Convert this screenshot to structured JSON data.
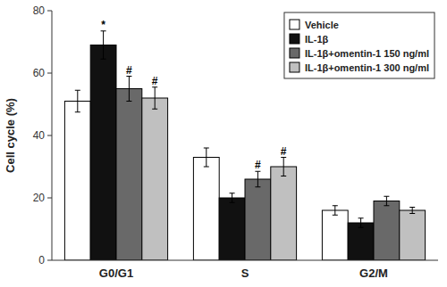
{
  "chart_data": {
    "type": "bar",
    "y_label": "Cell cycle (%)",
    "categories": [
      "G0/G1",
      "S",
      "G2/M"
    ],
    "series": [
      {
        "name": "Vehicle",
        "color": "#ffffff",
        "values": [
          51,
          33,
          16
        ],
        "errors": [
          3.5,
          3.0,
          1.5
        ],
        "annotations": [
          null,
          null,
          null
        ]
      },
      {
        "name": "IL-1β",
        "color": "#111111",
        "values": [
          69,
          20,
          12
        ],
        "errors": [
          4.5,
          1.5,
          1.5
        ],
        "annotations": [
          "*",
          null,
          null
        ]
      },
      {
        "name": "IL-1β+omentin-1 150 ng/ml",
        "color": "#696969",
        "values": [
          55,
          26,
          19
        ],
        "errors": [
          4.0,
          2.5,
          1.5
        ],
        "annotations": [
          "#",
          "#",
          null
        ]
      },
      {
        "name": "IL-1β+omentin-1 300 ng/ml",
        "color": "#c0c0c0",
        "values": [
          52,
          30,
          16
        ],
        "errors": [
          3.5,
          3.0,
          1.0
        ],
        "annotations": [
          "#",
          "#",
          null
        ]
      }
    ],
    "ylim": [
      0,
      80
    ],
    "yticks": [
      0,
      20,
      40,
      60,
      80
    ],
    "grid": false,
    "legend": "upper right"
  }
}
